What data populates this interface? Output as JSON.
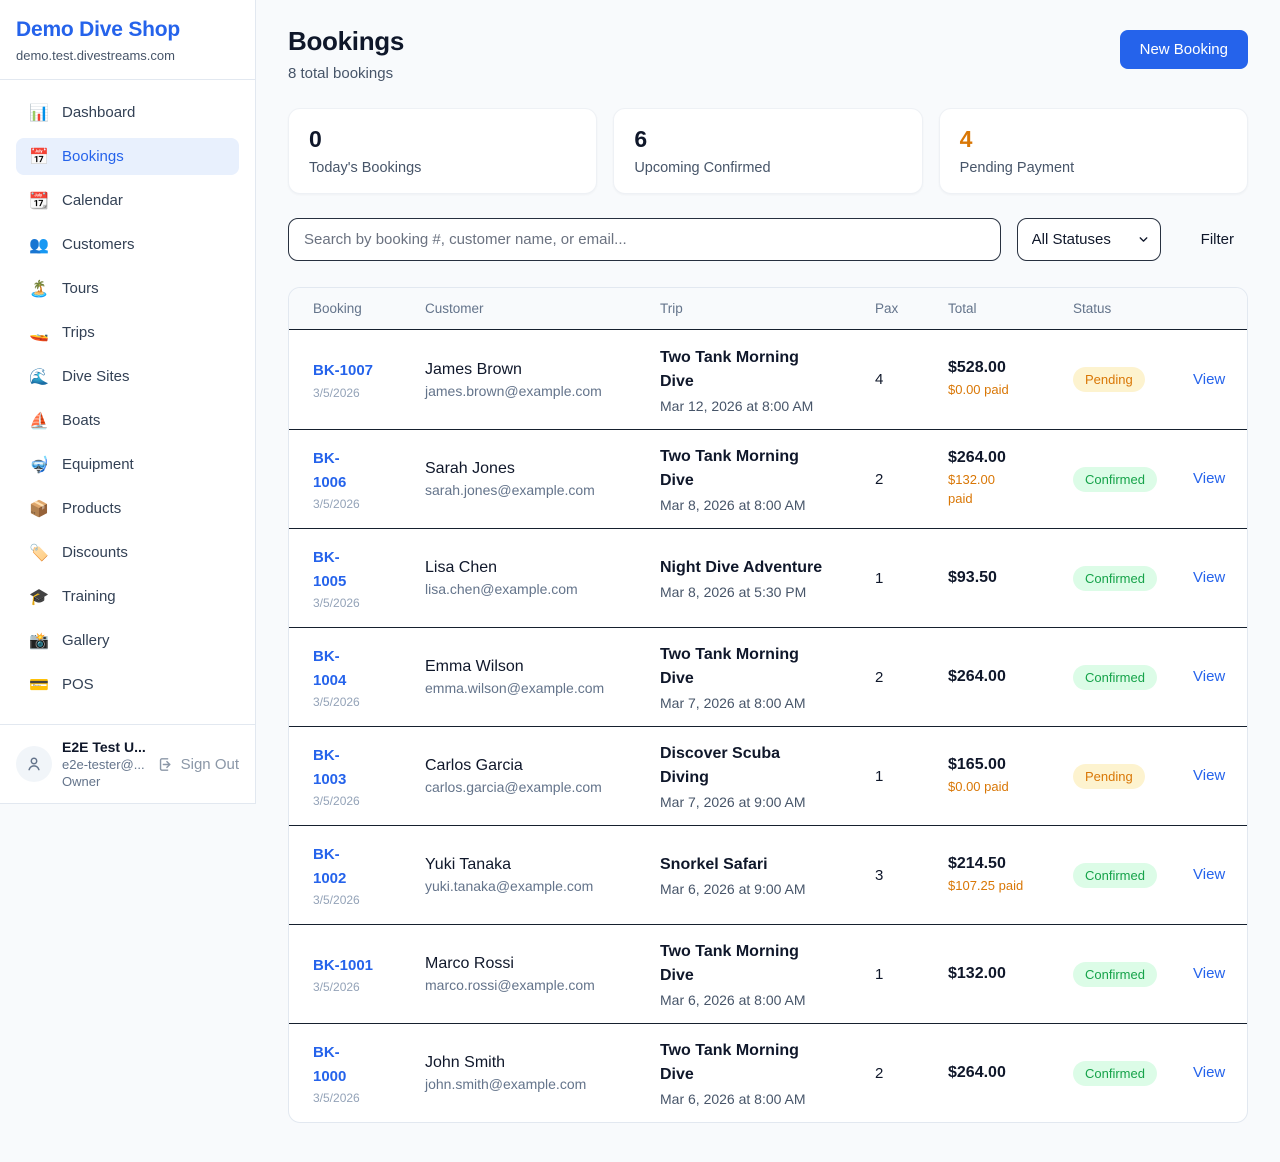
{
  "colors": {
    "accent": "#2563eb",
    "pending_text": "#d97706",
    "pending_bg": "#fdf3cf",
    "confirmed_text": "#16a34a",
    "confirmed_bg": "#dcfce7",
    "paid_text": "#d97706"
  },
  "brand": {
    "name": "Demo Dive Shop",
    "domain": "demo.test.divestreams.com"
  },
  "sidebar": {
    "items": [
      {
        "label": "Dashboard",
        "icon": "📊",
        "icon_name": "bar-chart-icon",
        "active": false
      },
      {
        "label": "Bookings",
        "icon": "📅",
        "icon_name": "calendar-17-icon",
        "active": true
      },
      {
        "label": "Calendar",
        "icon": "📆",
        "icon_name": "calendar-icon",
        "active": false
      },
      {
        "label": "Customers",
        "icon": "👥",
        "icon_name": "people-icon",
        "active": false
      },
      {
        "label": "Tours",
        "icon": "🏝️",
        "icon_name": "island-icon",
        "active": false
      },
      {
        "label": "Trips",
        "icon": "🚤",
        "icon_name": "speedboat-icon",
        "active": false
      },
      {
        "label": "Dive Sites",
        "icon": "🌊",
        "icon_name": "wave-icon",
        "active": false
      },
      {
        "label": "Boats",
        "icon": "⛵",
        "icon_name": "sailboat-icon",
        "active": false
      },
      {
        "label": "Equipment",
        "icon": "🤿",
        "icon_name": "dive-mask-icon",
        "active": false
      },
      {
        "label": "Products",
        "icon": "📦",
        "icon_name": "package-icon",
        "active": false
      },
      {
        "label": "Discounts",
        "icon": "🏷️",
        "icon_name": "tag-icon",
        "active": false
      },
      {
        "label": "Training",
        "icon": "🎓",
        "icon_name": "grad-cap-icon",
        "active": false
      },
      {
        "label": "Gallery",
        "icon": "📸",
        "icon_name": "camera-icon",
        "active": false
      },
      {
        "label": "POS",
        "icon": "💳",
        "icon_name": "credit-card-icon",
        "active": false
      }
    ]
  },
  "user": {
    "name": "E2E Test U...",
    "email": "e2e-tester@...",
    "role": "Owner",
    "sign_out_label": "Sign Out"
  },
  "header": {
    "title": "Bookings",
    "subtitle": "8 total bookings",
    "new_booking_label": "New Booking"
  },
  "stats": [
    {
      "value": "0",
      "label": "Today's Bookings",
      "highlight": false
    },
    {
      "value": "6",
      "label": "Upcoming Confirmed",
      "highlight": false
    },
    {
      "value": "4",
      "label": "Pending Payment",
      "highlight": true
    }
  ],
  "filters": {
    "search_placeholder": "Search by booking #, customer name, or email...",
    "status_selected": "All Statuses",
    "filter_label": "Filter"
  },
  "table": {
    "headers": [
      "Booking",
      "Customer",
      "Trip",
      "Pax",
      "Total",
      "Status"
    ],
    "view_label": "View",
    "rows": [
      {
        "id_lines": [
          "BK-1007"
        ],
        "date": "3/5/2026",
        "name": "James Brown",
        "email": "james.brown@example.com",
        "trip": "Two Tank Morning Dive",
        "trip_date": "Mar 12, 2026 at 8:00 AM",
        "pax": "4",
        "total": "$528.00",
        "paid_lines": [
          "$0.00 paid"
        ],
        "status": "Pending"
      },
      {
        "id_lines": [
          "BK-",
          "1006"
        ],
        "date": "3/5/2026",
        "name": "Sarah Jones",
        "email": "sarah.jones@example.com",
        "trip": "Two Tank Morning Dive",
        "trip_date": "Mar 8, 2026 at 8:00 AM",
        "pax": "2",
        "total": "$264.00",
        "paid_lines": [
          "$132.00",
          "paid"
        ],
        "status": "Confirmed"
      },
      {
        "id_lines": [
          "BK-",
          "1005"
        ],
        "date": "3/5/2026",
        "name": "Lisa Chen",
        "email": "lisa.chen@example.com",
        "trip": "Night Dive Adventure",
        "trip_date": "Mar 8, 2026 at 5:30 PM",
        "pax": "1",
        "total": "$93.50",
        "paid_lines": [],
        "status": "Confirmed"
      },
      {
        "id_lines": [
          "BK-",
          "1004"
        ],
        "date": "3/5/2026",
        "name": "Emma Wilson",
        "email": "emma.wilson@example.com",
        "trip": "Two Tank Morning Dive",
        "trip_date": "Mar 7, 2026 at 8:00 AM",
        "pax": "2",
        "total": "$264.00",
        "paid_lines": [],
        "status": "Confirmed"
      },
      {
        "id_lines": [
          "BK-",
          "1003"
        ],
        "date": "3/5/2026",
        "name": "Carlos Garcia",
        "email": "carlos.garcia@example.com",
        "trip": "Discover Scuba Diving",
        "trip_date": "Mar 7, 2026 at 9:00 AM",
        "pax": "1",
        "total": "$165.00",
        "paid_lines": [
          "$0.00 paid"
        ],
        "status": "Pending"
      },
      {
        "id_lines": [
          "BK-",
          "1002"
        ],
        "date": "3/5/2026",
        "name": "Yuki Tanaka",
        "email": "yuki.tanaka@example.com",
        "trip": "Snorkel Safari",
        "trip_date": "Mar 6, 2026 at 9:00 AM",
        "pax": "3",
        "total": "$214.50",
        "paid_lines": [
          "$107.25 paid"
        ],
        "status": "Confirmed"
      },
      {
        "id_lines": [
          "BK-1001"
        ],
        "date": "3/5/2026",
        "name": "Marco Rossi",
        "email": "marco.rossi@example.com",
        "trip": "Two Tank Morning Dive",
        "trip_date": "Mar 6, 2026 at 8:00 AM",
        "pax": "1",
        "total": "$132.00",
        "paid_lines": [],
        "status": "Confirmed"
      },
      {
        "id_lines": [
          "BK-",
          "1000"
        ],
        "date": "3/5/2026",
        "name": "John Smith",
        "email": "john.smith@example.com",
        "trip": "Two Tank Morning Dive",
        "trip_date": "Mar 6, 2026 at 8:00 AM",
        "pax": "2",
        "total": "$264.00",
        "paid_lines": [],
        "status": "Confirmed"
      }
    ]
  }
}
